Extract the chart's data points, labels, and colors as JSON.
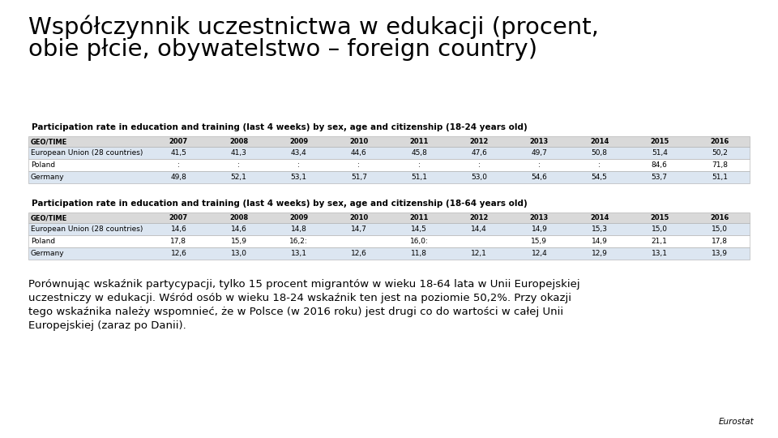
{
  "title_line1": "Współczynnik uczestnictwa w edukacji (procent,",
  "title_line2": "obie płcie, obywatelstwo – foreign country)",
  "table1_title": "Participation rate in education and training (last 4 weeks) by sex, age and citizenship (18-24 years old)",
  "table2_title": "Participation rate in education and training (last 4 weeks) by sex, age and citizenship (18-64 years old)",
  "columns": [
    "GEO/TIME",
    "2007",
    "2008",
    "2009",
    "2010",
    "2011",
    "2012",
    "2013",
    "2014",
    "2015",
    "2016"
  ],
  "table1_rows": [
    [
      "European Union (28 countries)",
      "41,5",
      "41,3",
      "43,4",
      "44,6",
      "45,8",
      "47,6",
      "49,7",
      "50,8",
      "51,4",
      "50,2"
    ],
    [
      "Poland",
      ":",
      ":",
      ":",
      ":",
      ":",
      ":",
      ":",
      ":",
      "84,6",
      "71,8"
    ],
    [
      "Germany",
      "49,8",
      "52,1",
      "53,1",
      "51,7",
      "51,1",
      "53,0",
      "54,6",
      "54,5",
      "53,7",
      "51,1"
    ]
  ],
  "table2_rows": [
    [
      "European Union (28 countries)",
      "14,6",
      "14,6",
      "14,8",
      "14,7",
      "14,5",
      "14,4",
      "14,9",
      "15,3",
      "15,0",
      "15,0"
    ],
    [
      "Poland",
      "17,8",
      "15,9",
      "16,2:",
      "",
      "16,0:",
      "",
      "15,9",
      "14,9",
      "21,1",
      "17,8"
    ],
    [
      "Germany",
      "12,6",
      "13,0",
      "13,1",
      "12,6",
      "11,8",
      "12,1",
      "12,4",
      "12,9",
      "13,1",
      "13,9"
    ]
  ],
  "paragraph_lines": [
    "Porównując wskaźnik partycypacji, tylko 15 procent migrantów w wieku 18-64 lata w Unii Europejskiej",
    "uczestniczy w edukacji. Wśród osób w wieku 18-24 wskaźnik ten jest na poziomie 50,2%. Przy okazji",
    "tego wskaźnika należy wspomnieć, że w Polsce (w 2016 roku) jest drugi co do wartości w całej Unii",
    "Europejskiej (zaraz po Danii)."
  ],
  "source": "Eurostat",
  "bg_color": "#ffffff",
  "header_row_color": "#d9d9d9",
  "alt_row_color": "#dce6f1",
  "white_row_color": "#ffffff",
  "border_color": "#aaaaaa",
  "title_font_size": 21,
  "table_title_font_size": 7.5,
  "header_font_size": 6,
  "cell_font_size": 6.5,
  "paragraph_font_size": 9.5,
  "source_font_size": 7.5
}
